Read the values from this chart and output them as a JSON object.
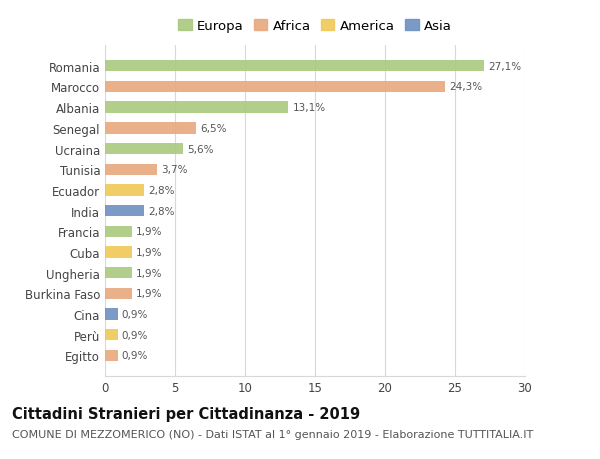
{
  "countries": [
    "Romania",
    "Marocco",
    "Albania",
    "Senegal",
    "Ucraina",
    "Tunisia",
    "Ecuador",
    "India",
    "Francia",
    "Cuba",
    "Ungheria",
    "Burkina Faso",
    "Cina",
    "Perù",
    "Egitto"
  ],
  "values": [
    27.1,
    24.3,
    13.1,
    6.5,
    5.6,
    3.7,
    2.8,
    2.8,
    1.9,
    1.9,
    1.9,
    1.9,
    0.9,
    0.9,
    0.9
  ],
  "labels": [
    "27,1%",
    "24,3%",
    "13,1%",
    "6,5%",
    "5,6%",
    "3,7%",
    "2,8%",
    "2,8%",
    "1,9%",
    "1,9%",
    "1,9%",
    "1,9%",
    "0,9%",
    "0,9%",
    "0,9%"
  ],
  "continents": [
    "Europa",
    "Africa",
    "Europa",
    "Africa",
    "Europa",
    "Africa",
    "America",
    "Asia",
    "Europa",
    "America",
    "Europa",
    "Africa",
    "Asia",
    "America",
    "Africa"
  ],
  "continent_colors": {
    "Europa": "#aac97e",
    "Africa": "#e8a87c",
    "America": "#f0c858",
    "Asia": "#6e8fc0"
  },
  "legend_order": [
    "Europa",
    "Africa",
    "America",
    "Asia"
  ],
  "title": "Cittadini Stranieri per Cittadinanza - 2019",
  "subtitle": "COMUNE DI MEZZOMERICO (NO) - Dati ISTAT al 1° gennaio 2019 - Elaborazione TUTTITALIA.IT",
  "xlim": [
    0,
    30
  ],
  "xticks": [
    0,
    5,
    10,
    15,
    20,
    25,
    30
  ],
  "background_color": "#ffffff",
  "grid_color": "#d8d8d8",
  "bar_height": 0.55,
  "title_fontsize": 10.5,
  "subtitle_fontsize": 8,
  "label_fontsize": 7.5,
  "tick_fontsize": 8.5,
  "legend_fontsize": 9.5
}
